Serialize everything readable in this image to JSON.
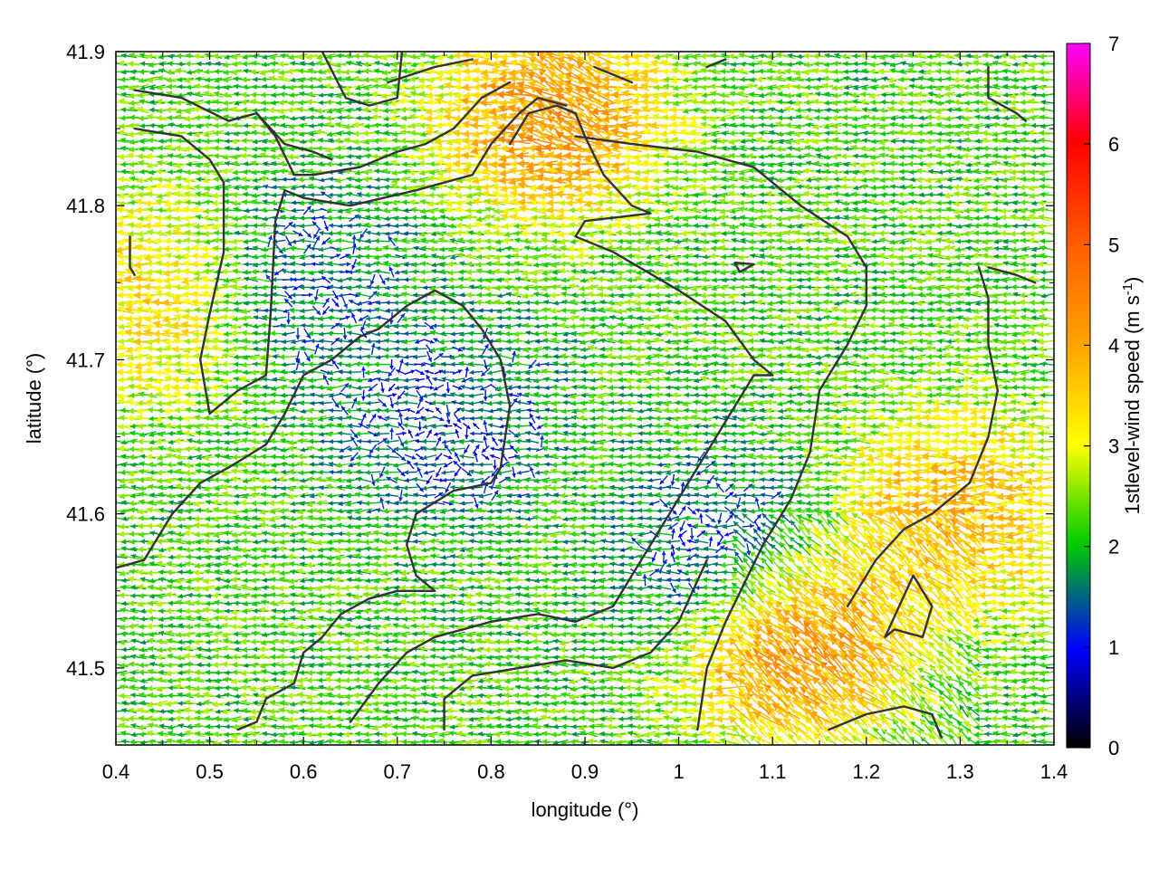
{
  "chart_data": {
    "type": "vector_field",
    "xlabel": "longitude (°)",
    "ylabel": "latitude (°)",
    "xlim": [
      0.4,
      1.4
    ],
    "ylim": [
      41.45,
      41.9
    ],
    "x_ticks": [
      "0.4",
      "0.5",
      "0.6",
      "0.7",
      "0.8",
      "0.9",
      "1",
      "1.1",
      "1.2",
      "1.3",
      "1.4"
    ],
    "y_ticks": [
      "41.5",
      "41.6",
      "41.7",
      "41.8",
      "41.9"
    ],
    "colorbar": {
      "label_main": "1stlevel-wind speed (m s",
      "label_sup": "-1",
      "label_end": ")",
      "range": [
        0,
        7
      ],
      "ticks": [
        "0",
        "1",
        "2",
        "3",
        "4",
        "5",
        "6",
        "7"
      ],
      "colormap": [
        "#000000",
        "#0000ff",
        "#00cc00",
        "#ffff00",
        "#ff0000",
        "#ff00ff"
      ]
    },
    "grid": false,
    "dominant_wind_direction": "westward",
    "wind_regions": [
      {
        "lon": 0.45,
        "lat": 41.74,
        "speed": 3.8
      },
      {
        "lon": 0.87,
        "lat": 41.86,
        "speed": 4.8
      },
      {
        "lon": 1.12,
        "lat": 41.52,
        "speed": 5.2
      },
      {
        "lon": 1.3,
        "lat": 41.6,
        "speed": 4.2
      },
      {
        "lon": 0.75,
        "lat": 41.66,
        "speed": 0.9
      },
      {
        "lon": 1.05,
        "lat": 41.57,
        "speed": 0.8
      },
      {
        "lon": 0.6,
        "lat": 41.75,
        "speed": 1.1
      }
    ],
    "contours": [
      [
        [
          0.42,
          41.875
        ],
        [
          0.47,
          41.87
        ],
        [
          0.52,
          41.855
        ],
        [
          0.55,
          41.86
        ],
        [
          0.58,
          41.84
        ],
        [
          0.61,
          41.835
        ],
        [
          0.63,
          41.83
        ]
      ],
      [
        [
          0.42,
          41.85
        ],
        [
          0.47,
          41.845
        ],
        [
          0.5,
          41.83
        ],
        [
          0.515,
          41.815
        ],
        [
          0.515,
          41.77
        ],
        [
          0.5,
          41.73
        ],
        [
          0.49,
          41.7
        ],
        [
          0.5,
          41.665
        ],
        [
          0.53,
          41.68
        ],
        [
          0.56,
          41.69
        ],
        [
          0.565,
          41.73
        ],
        [
          0.57,
          41.79
        ],
        [
          0.58,
          41.81
        ],
        [
          0.6,
          41.805
        ],
        [
          0.65,
          41.8
        ],
        [
          0.72,
          41.81
        ],
        [
          0.78,
          41.82
        ],
        [
          0.8,
          41.84
        ],
        [
          0.83,
          41.86
        ],
        [
          0.85,
          41.87
        ],
        [
          0.88,
          41.865
        ]
      ],
      [
        [
          0.55,
          41.86
        ],
        [
          0.57,
          41.845
        ],
        [
          0.59,
          41.82
        ],
        [
          0.61,
          41.82
        ],
        [
          0.66,
          41.825
        ],
        [
          0.7,
          41.835
        ],
        [
          0.73,
          41.84
        ],
        [
          0.76,
          41.85
        ],
        [
          0.79,
          41.87
        ],
        [
          0.82,
          41.88
        ]
      ],
      [
        [
          0.62,
          41.9
        ],
        [
          0.645,
          41.87
        ],
        [
          0.67,
          41.865
        ],
        [
          0.7,
          41.87
        ],
        [
          0.705,
          41.9
        ]
      ],
      [
        [
          0.69,
          41.88
        ],
        [
          0.74,
          41.89
        ],
        [
          0.78,
          41.895
        ]
      ],
      [
        [
          0.91,
          41.89
        ],
        [
          0.95,
          41.88
        ]
      ],
      [
        [
          1.03,
          41.89
        ],
        [
          1.05,
          41.895
        ]
      ],
      [
        [
          1.33,
          41.89
        ],
        [
          1.33,
          41.87
        ],
        [
          1.36,
          41.86
        ],
        [
          1.37,
          41.855
        ]
      ],
      [
        [
          0.82,
          41.84
        ],
        [
          0.84,
          41.86
        ],
        [
          0.87,
          41.865
        ],
        [
          0.89,
          41.86
        ],
        [
          0.9,
          41.845
        ],
        [
          0.92,
          41.82
        ],
        [
          0.95,
          41.8
        ],
        [
          0.97,
          41.795
        ],
        [
          0.9,
          41.79
        ],
        [
          0.89,
          41.78
        ],
        [
          0.93,
          41.77
        ],
        [
          1.0,
          41.745
        ],
        [
          1.05,
          41.725
        ],
        [
          1.08,
          41.7
        ],
        [
          1.1,
          41.69
        ]
      ],
      [
        [
          0.89,
          41.845
        ],
        [
          0.95,
          41.84
        ],
        [
          1.02,
          41.835
        ],
        [
          1.08,
          41.825
        ],
        [
          1.13,
          41.8
        ],
        [
          1.18,
          41.78
        ],
        [
          1.2,
          41.76
        ],
        [
          1.2,
          41.735
        ],
        [
          1.18,
          41.71
        ],
        [
          1.15,
          41.68
        ],
        [
          1.14,
          41.64
        ],
        [
          1.12,
          41.61
        ],
        [
          1.09,
          41.58
        ],
        [
          1.05,
          41.53
        ],
        [
          1.03,
          41.5
        ],
        [
          1.02,
          41.46
        ]
      ],
      [
        [
          1.06,
          41.763
        ],
        [
          1.08,
          41.762
        ],
        [
          1.065,
          41.757
        ],
        [
          1.06,
          41.763
        ]
      ],
      [
        [
          0.415,
          41.78
        ],
        [
          0.415,
          41.76
        ],
        [
          0.42,
          41.755
        ]
      ],
      [
        [
          0.4,
          41.565
        ],
        [
          0.43,
          41.57
        ],
        [
          0.46,
          41.6
        ],
        [
          0.49,
          41.62
        ],
        [
          0.52,
          41.63
        ],
        [
          0.56,
          41.645
        ],
        [
          0.58,
          41.665
        ],
        [
          0.6,
          41.69
        ],
        [
          0.63,
          41.7
        ],
        [
          0.66,
          41.715
        ],
        [
          0.68,
          41.72
        ],
        [
          0.71,
          41.735
        ],
        [
          0.74,
          41.745
        ],
        [
          0.77,
          41.735
        ],
        [
          0.79,
          41.72
        ],
        [
          0.81,
          41.7
        ],
        [
          0.82,
          41.67
        ],
        [
          0.81,
          41.63
        ],
        [
          0.8,
          41.62
        ],
        [
          0.76,
          41.615
        ],
        [
          0.72,
          41.6
        ],
        [
          0.71,
          41.58
        ],
        [
          0.72,
          41.56
        ],
        [
          0.74,
          41.55
        ],
        [
          0.7,
          41.55
        ],
        [
          0.67,
          41.545
        ],
        [
          0.64,
          41.535
        ],
        [
          0.62,
          41.52
        ],
        [
          0.6,
          41.51
        ],
        [
          0.59,
          41.49
        ],
        [
          0.56,
          41.48
        ],
        [
          0.55,
          41.465
        ],
        [
          0.53,
          41.46
        ]
      ],
      [
        [
          0.65,
          41.465
        ],
        [
          0.68,
          41.49
        ],
        [
          0.71,
          41.51
        ],
        [
          0.74,
          41.52
        ],
        [
          0.8,
          41.53
        ],
        [
          0.85,
          41.535
        ],
        [
          0.89,
          41.53
        ],
        [
          0.93,
          41.54
        ],
        [
          0.96,
          41.57
        ],
        [
          0.99,
          41.6
        ],
        [
          1.02,
          41.63
        ],
        [
          1.05,
          41.66
        ],
        [
          1.08,
          41.69
        ],
        [
          1.1,
          41.69
        ]
      ],
      [
        [
          0.75,
          41.46
        ],
        [
          0.75,
          41.48
        ],
        [
          0.78,
          41.495
        ],
        [
          0.83,
          41.5
        ],
        [
          0.88,
          41.505
        ],
        [
          0.93,
          41.5
        ],
        [
          0.97,
          41.51
        ],
        [
          1.0,
          41.53
        ],
        [
          1.03,
          41.57
        ]
      ],
      [
        [
          1.22,
          41.52
        ],
        [
          1.23,
          41.525
        ],
        [
          1.26,
          41.52
        ],
        [
          1.27,
          41.54
        ],
        [
          1.25,
          41.56
        ],
        [
          1.22,
          41.52
        ]
      ],
      [
        [
          1.16,
          41.46
        ],
        [
          1.2,
          41.47
        ],
        [
          1.24,
          41.475
        ],
        [
          1.27,
          41.47
        ],
        [
          1.28,
          41.455
        ]
      ],
      [
        [
          1.32,
          41.76
        ],
        [
          1.33,
          41.74
        ],
        [
          1.33,
          41.71
        ],
        [
          1.34,
          41.68
        ],
        [
          1.33,
          41.65
        ],
        [
          1.31,
          41.62
        ],
        [
          1.27,
          41.6
        ],
        [
          1.24,
          41.59
        ],
        [
          1.21,
          41.57
        ],
        [
          1.18,
          41.54
        ]
      ],
      [
        [
          1.33,
          41.76
        ],
        [
          1.36,
          41.755
        ],
        [
          1.38,
          41.75
        ]
      ]
    ]
  }
}
